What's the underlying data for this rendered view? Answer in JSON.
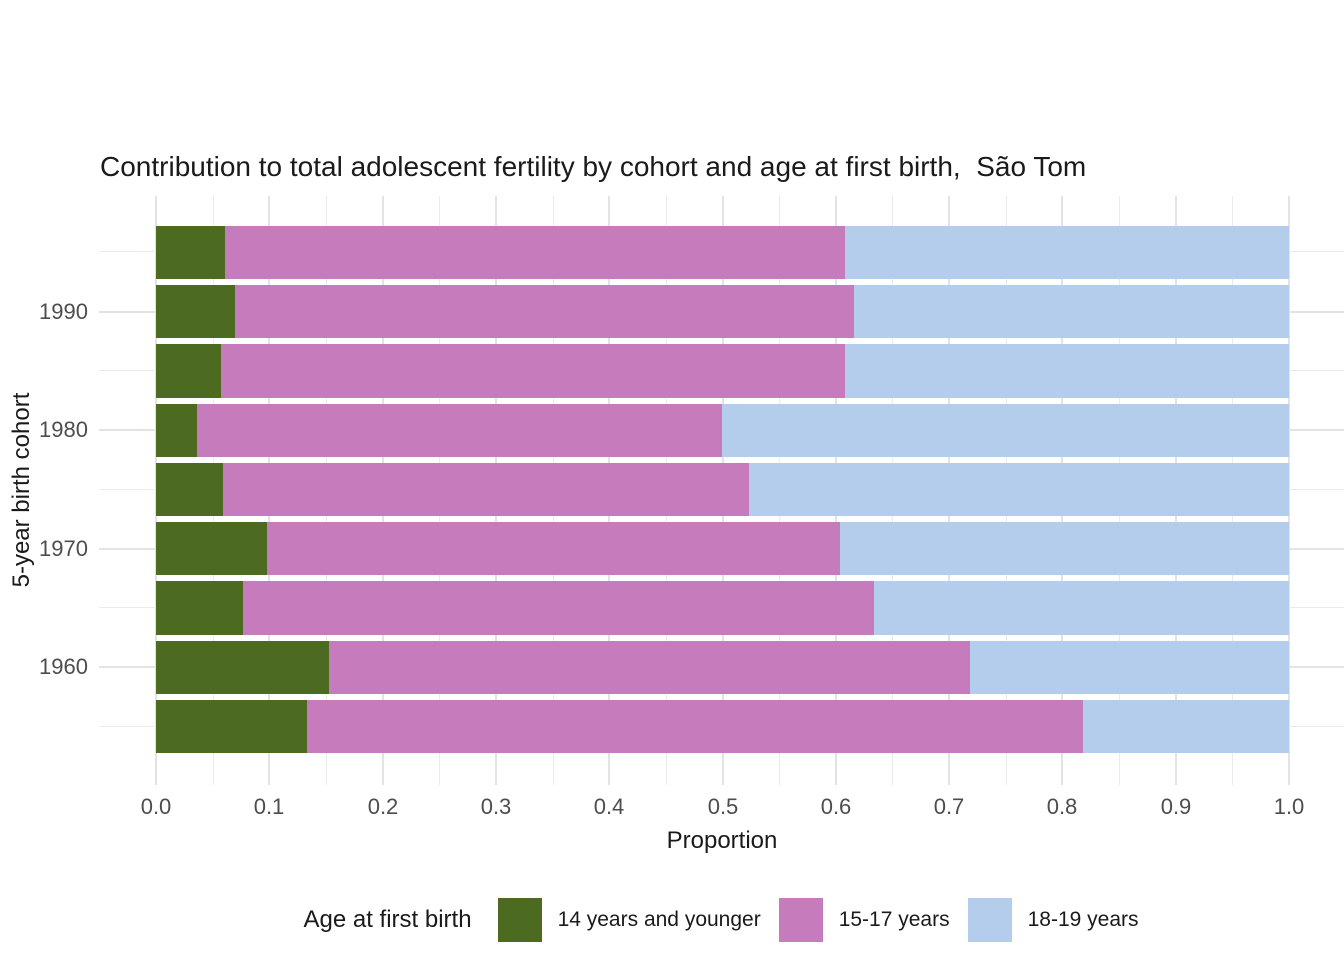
{
  "title": "Contribution to total adolescent fertility by cohort and age at first birth,  São Tom",
  "colors": {
    "series_green": "#4c6b21",
    "series_pink": "#c57bbc",
    "series_blue": "#b5cded",
    "gridline_major": "#e3e3e3",
    "gridline_minor": "#ebebeb",
    "tick_text": "#4d4d4d",
    "title_text": "#1a1a1a"
  },
  "chart_data": {
    "type": "bar",
    "subtype": "horizontal_stacked_proportion",
    "title": "Contribution to total adolescent fertility by cohort and age at first birth,  São Tom",
    "xlabel": "Proportion",
    "ylabel": "5-year birth cohort",
    "xlim": [
      0.0,
      1.0
    ],
    "x_tick_labels": [
      "0.0",
      "0.1",
      "0.2",
      "0.3",
      "0.4",
      "0.5",
      "0.6",
      "0.7",
      "0.8",
      "0.9",
      "1.0"
    ],
    "x_tick_values": [
      0.0,
      0.1,
      0.2,
      0.3,
      0.4,
      0.5,
      0.6,
      0.7,
      0.8,
      0.9,
      1.0
    ],
    "grid": "major_and_minor",
    "rows_top_to_bottom": 9,
    "categories": [
      "",
      "1990",
      "",
      "1980",
      "",
      "1970",
      "",
      "1960",
      ""
    ],
    "series": [
      {
        "name": "14 years and younger",
        "color": "#4c6b21",
        "values": [
          0.061,
          0.07,
          0.057,
          0.036,
          0.059,
          0.098,
          0.077,
          0.153,
          0.133
        ]
      },
      {
        "name": "15-17 years",
        "color": "#c57bbc",
        "values": [
          0.547,
          0.546,
          0.551,
          0.463,
          0.464,
          0.506,
          0.557,
          0.566,
          0.685
        ]
      },
      {
        "name": "18-19 years",
        "color": "#b5cded",
        "values": [
          0.392,
          0.384,
          0.392,
          0.501,
          0.477,
          0.396,
          0.366,
          0.281,
          0.182
        ]
      }
    ],
    "legend": {
      "title": "Age at first birth",
      "position": "bottom",
      "entries": [
        {
          "label": "14 years and younger",
          "color": "#4c6b21"
        },
        {
          "label": "15-17 years",
          "color": "#c57bbc"
        },
        {
          "label": "18-19 years",
          "color": "#b5cded"
        }
      ]
    }
  }
}
